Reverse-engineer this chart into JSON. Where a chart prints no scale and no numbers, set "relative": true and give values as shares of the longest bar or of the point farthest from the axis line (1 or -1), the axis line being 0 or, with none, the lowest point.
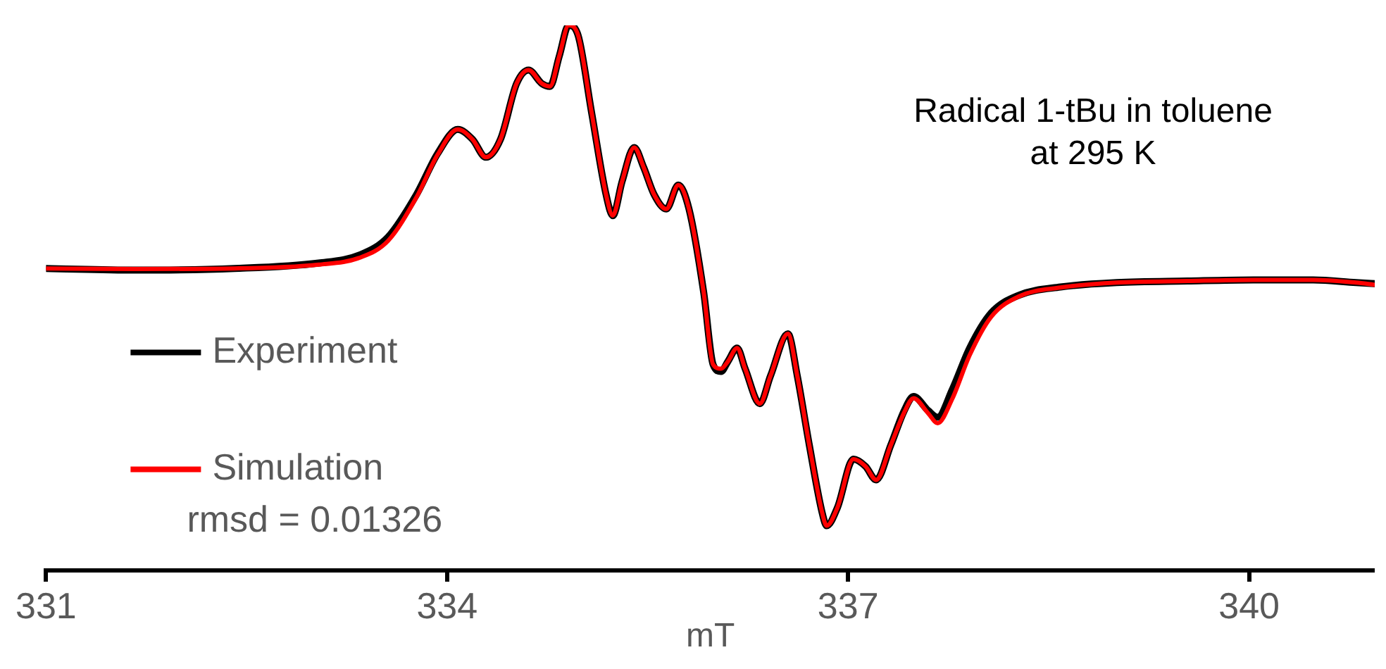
{
  "chart_data": {
    "type": "line",
    "relative": true,
    "xlabel": "mT",
    "xlim": [
      331,
      340.94
    ],
    "xticks": [
      331,
      334,
      337,
      340
    ],
    "grid": false,
    "legend": "bottom left",
    "marker": "none",
    "line_style": "solid",
    "annotations": [
      "Radical 1-tBu in toluene",
      "at 295 K",
      "rmsd = 0.01326"
    ],
    "series": [
      {
        "name": "Experiment",
        "color": "#000000",
        "x": [
          331.0,
          331.67,
          332.41,
          333.04,
          333.35,
          333.56,
          333.77,
          333.93,
          334.08,
          334.19,
          334.29,
          334.4,
          334.52,
          334.61,
          334.71,
          334.77,
          334.84,
          334.91,
          334.98,
          335.08,
          335.19,
          335.24,
          335.31,
          335.4,
          335.47,
          335.55,
          335.64,
          335.73,
          335.81,
          335.92,
          335.99,
          336.05,
          336.1,
          336.17,
          336.23,
          336.34,
          336.42,
          336.55,
          336.62,
          336.71,
          336.81,
          336.84,
          336.92,
          337.04,
          337.13,
          337.21,
          337.32,
          337.42,
          337.49,
          337.6,
          337.67,
          337.78,
          337.91,
          338.07,
          338.28,
          338.59,
          339.01,
          339.54,
          340.06,
          340.48,
          340.8,
          340.94
        ],
        "values": [
          0.554,
          0.551,
          0.554,
          0.564,
          0.579,
          0.612,
          0.689,
          0.765,
          0.809,
          0.791,
          0.758,
          0.791,
          0.893,
          0.918,
          0.893,
          0.888,
          0.944,
          1.0,
          0.982,
          0.842,
          0.689,
          0.651,
          0.714,
          0.776,
          0.74,
          0.689,
          0.663,
          0.707,
          0.663,
          0.51,
          0.378,
          0.365,
          0.383,
          0.408,
          0.37,
          0.306,
          0.357,
          0.434,
          0.357,
          0.23,
          0.102,
          0.082,
          0.115,
          0.204,
          0.191,
          0.166,
          0.23,
          0.293,
          0.319,
          0.293,
          0.281,
          0.332,
          0.408,
          0.472,
          0.505,
          0.52,
          0.528,
          0.531,
          0.533,
          0.533,
          0.528,
          0.526
        ]
      },
      {
        "name": "Simulation",
        "color": "#ff0000",
        "x": [
          331.0,
          331.67,
          332.41,
          333.04,
          333.35,
          333.56,
          333.77,
          333.93,
          334.08,
          334.19,
          334.29,
          334.4,
          334.52,
          334.61,
          334.71,
          334.77,
          334.84,
          334.91,
          334.98,
          335.08,
          335.19,
          335.24,
          335.31,
          335.4,
          335.47,
          335.55,
          335.64,
          335.73,
          335.81,
          335.92,
          335.99,
          336.05,
          336.1,
          336.17,
          336.23,
          336.34,
          336.42,
          336.55,
          336.62,
          336.71,
          336.81,
          336.84,
          336.92,
          337.04,
          337.13,
          337.21,
          337.32,
          337.42,
          337.49,
          337.6,
          337.67,
          337.78,
          337.91,
          338.07,
          338.28,
          338.59,
          339.01,
          339.54,
          340.06,
          340.48,
          340.8,
          340.94
        ],
        "values": [
          0.554,
          0.553,
          0.554,
          0.561,
          0.574,
          0.605,
          0.684,
          0.763,
          0.809,
          0.791,
          0.758,
          0.791,
          0.893,
          0.918,
          0.893,
          0.888,
          0.944,
          1.0,
          0.982,
          0.842,
          0.689,
          0.651,
          0.714,
          0.776,
          0.74,
          0.689,
          0.663,
          0.707,
          0.663,
          0.51,
          0.378,
          0.37,
          0.383,
          0.408,
          0.37,
          0.306,
          0.357,
          0.434,
          0.357,
          0.23,
          0.102,
          0.082,
          0.115,
          0.204,
          0.191,
          0.166,
          0.23,
          0.29,
          0.316,
          0.288,
          0.27,
          0.315,
          0.395,
          0.465,
          0.503,
          0.519,
          0.528,
          0.531,
          0.533,
          0.533,
          0.528,
          0.524
        ]
      }
    ]
  }
}
